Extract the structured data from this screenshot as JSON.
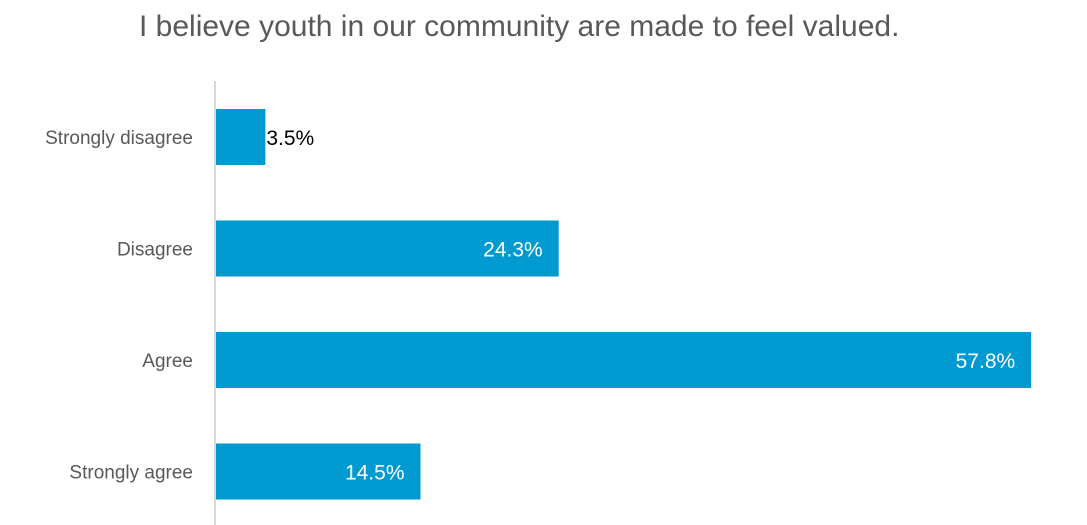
{
  "chart_data": {
    "type": "bar",
    "orientation": "horizontal",
    "title": "I believe youth in our community are made to feel valued.",
    "categories": [
      "Strongly disagree",
      "Disagree",
      "Agree",
      "Strongly agree"
    ],
    "values": [
      3.5,
      24.3,
      57.8,
      14.5
    ],
    "value_labels": [
      "3.5%",
      "24.3%",
      "57.8%",
      "14.5%"
    ],
    "unit": "%",
    "xlim": [
      0,
      58
    ],
    "grid": false,
    "legend": "none",
    "bar_color": "#0099d0",
    "axis_color": "#d9d9d9",
    "label_color": "#595959"
  }
}
